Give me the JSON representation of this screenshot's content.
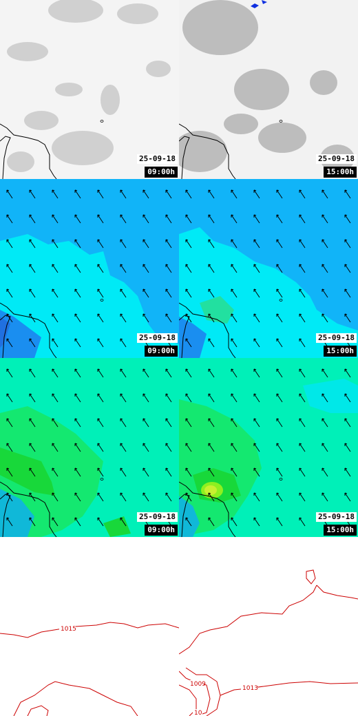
{
  "panels": [
    {
      "id": "cloud-0900",
      "date": "25-09-18",
      "time": "09:00h"
    },
    {
      "id": "cloud-1500",
      "date": "25-09-18",
      "time": "15:00h"
    },
    {
      "id": "wind-a-0900",
      "date": "25-09-18",
      "time": "09:00h"
    },
    {
      "id": "wind-a-1500",
      "date": "25-09-18",
      "time": "15:00h"
    },
    {
      "id": "wind-b-0900",
      "date": "25-09-18",
      "time": "09:00h"
    },
    {
      "id": "wind-b-1500",
      "date": "25-09-18",
      "time": "15:00h"
    }
  ],
  "isobars": {
    "left": [
      "1015"
    ],
    "right": [
      "1009",
      "1013",
      "10"
    ]
  },
  "colors": {
    "coast": "#000000",
    "isobar": "#cc0000",
    "wind_bg_blue": "#11b4f8",
    "wind_bg_cyan": "#00eaf6",
    "wind2_bg": "#00f0b8",
    "wind2_green": "#14e832",
    "cloud_gray": "#b8b8b8"
  }
}
